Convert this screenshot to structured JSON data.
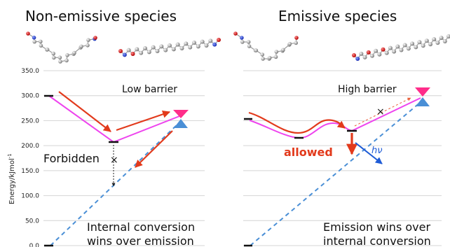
{
  "headings": {
    "left": "Non-emissive species",
    "right": "Emissive species"
  },
  "y_axis": {
    "label": "Energy/kJmol",
    "label_superscript": "-1",
    "ticks": [
      "350.0",
      "300.0",
      "250.0",
      "200.0",
      "150.0",
      "100.0",
      "50.0",
      "0.0"
    ]
  },
  "left_panel": {
    "barrier_label": "Low barrier",
    "forbidden_label": "Forbidden",
    "cross_mark": "×",
    "conclusion_line1": "Internal conversion",
    "conclusion_line2": "wins over emission"
  },
  "right_panel": {
    "barrier_label": "High barrier",
    "allowed_label": "allowed",
    "hv_label": "hν",
    "cross_mark": "×",
    "conclusion_line1": "Emission wins over",
    "conclusion_line2": "internal conversion"
  },
  "chart_data": {
    "type": "line",
    "ylabel": "Energy/kJmol-1",
    "ylim": [
      0,
      350
    ],
    "ytick_labels": [
      "350.0",
      "300.0",
      "250.0",
      "200.0",
      "150.0",
      "100.0",
      "50.0",
      "0.0"
    ],
    "grid": true,
    "panels": [
      {
        "heading": "Non-emissive species",
        "levels": [
          {
            "state": "start",
            "energy": 300
          },
          {
            "state": "intermediate",
            "energy": 207
          },
          {
            "state": "crossing",
            "energy": 255
          },
          {
            "state": "ground",
            "energy": 0
          }
        ]
      },
      {
        "heading": "Emissive species",
        "levels": [
          {
            "state": "start",
            "energy": 253
          },
          {
            "state": "minimum",
            "energy": 215
          },
          {
            "state": "emissive",
            "energy": 228
          },
          {
            "state": "crossing",
            "energy": 300
          },
          {
            "state": "ground",
            "energy": 0
          }
        ]
      }
    ]
  },
  "colors": {
    "pink": "#ee44ee",
    "red": "#e23a1c",
    "blue": "#1e5bd6",
    "dashed_blue": "#4a8fd6",
    "cone_top": "#ff2d8a",
    "cone_bottom": "#4a8fd6"
  }
}
